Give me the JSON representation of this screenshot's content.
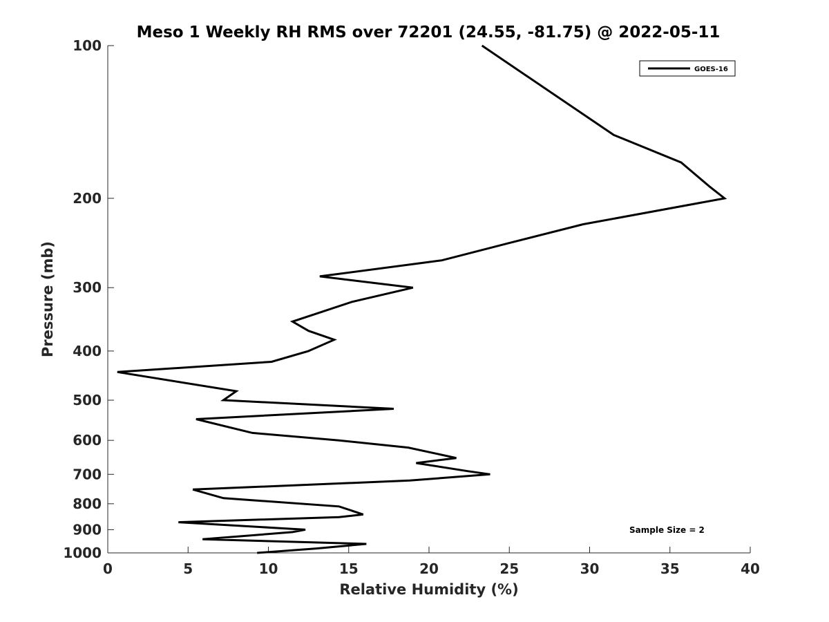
{
  "chart_data": {
    "type": "line",
    "title": "Meso 1 Weekly RH RMS over 72201 (24.55, -81.75) @ 2022-05-11",
    "xlabel": "Relative Humidity (%)",
    "ylabel": "Pressure (mb)",
    "xlim": [
      0,
      40
    ],
    "ylim": [
      100,
      1000
    ],
    "yscale": "log",
    "yreversed": true,
    "xticks": [
      0,
      5,
      10,
      15,
      20,
      25,
      30,
      35,
      40
    ],
    "yticks": [
      100,
      200,
      300,
      400,
      500,
      600,
      700,
      800,
      900,
      1000
    ],
    "grid": false,
    "legend_position": "top-right",
    "annotation": "Sample Size = 2",
    "series": [
      {
        "name": "GOES-16",
        "color": "#000000",
        "x": [
          23.3,
          31.5,
          35.7,
          37.5,
          38.4,
          29.6,
          25.0,
          20.8,
          13.2,
          19.0,
          15.2,
          11.5,
          12.5,
          14.1,
          12.5,
          10.2,
          0.6,
          8.0,
          7.2,
          17.8,
          5.5,
          9.0,
          14.4,
          18.7,
          21.7,
          19.2,
          22.4,
          23.8,
          18.8,
          5.3,
          7.2,
          14.4,
          15.9,
          14.4,
          4.4,
          12.3,
          11.5,
          5.9,
          16.1,
          13.0,
          9.3
        ],
        "y": [
          100,
          150,
          170,
          190,
          200,
          225,
          245,
          265,
          285,
          300,
          320,
          350,
          365,
          380,
          400,
          420,
          440,
          480,
          500,
          520,
          545,
          580,
          600,
          620,
          650,
          665,
          690,
          700,
          720,
          750,
          780,
          810,
          840,
          850,
          870,
          900,
          910,
          940,
          960,
          980,
          1000
        ]
      }
    ]
  }
}
